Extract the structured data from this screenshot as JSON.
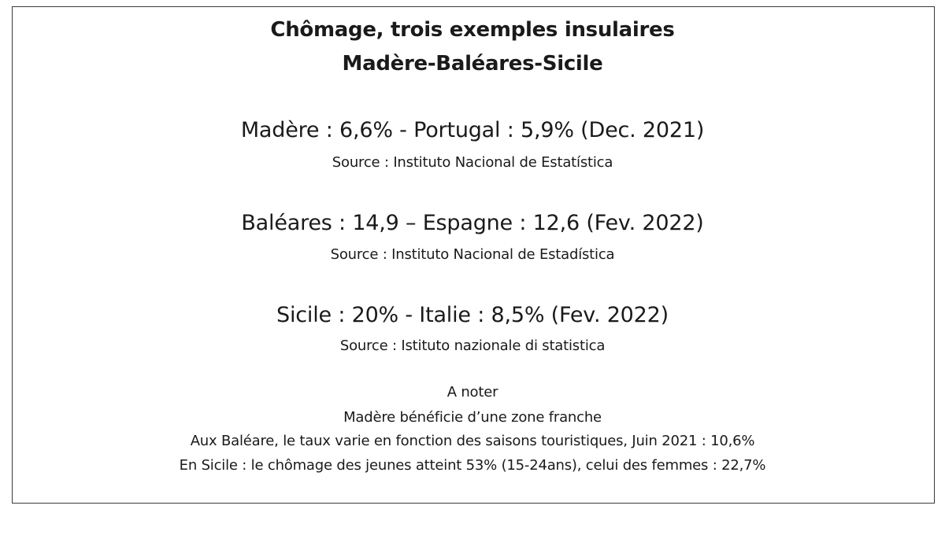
{
  "title": {
    "line1": "Chômage, trois exemples insulaires",
    "line2": "Madère-Baléares-Sicile"
  },
  "sections": [
    {
      "stat": "Madère : 6,6% - Portugal : 5,9% (Dec. 2021)",
      "source": "Source : Instituto Nacional de Estatística"
    },
    {
      "stat": "Baléares : 14,9 – Espagne : 12,6  (Fev. 2022)",
      "source": "Source : Instituto Nacional de Estadística"
    },
    {
      "stat": "Sicile : 20% - Italie : 8,5% (Fev. 2022)",
      "source": "Source : Istituto nazionale di statistica"
    }
  ],
  "notes": {
    "heading": "A noter",
    "lines": [
      "Madère bénéficie d’une zone franche",
      "Aux Baléare, le taux varie en fonction des saisons touristiques, Juin 2021 : 10,6%",
      "En Sicile : le chômage des jeunes atteint 53% (15-24ans), celui des femmes : 22,7%"
    ]
  }
}
